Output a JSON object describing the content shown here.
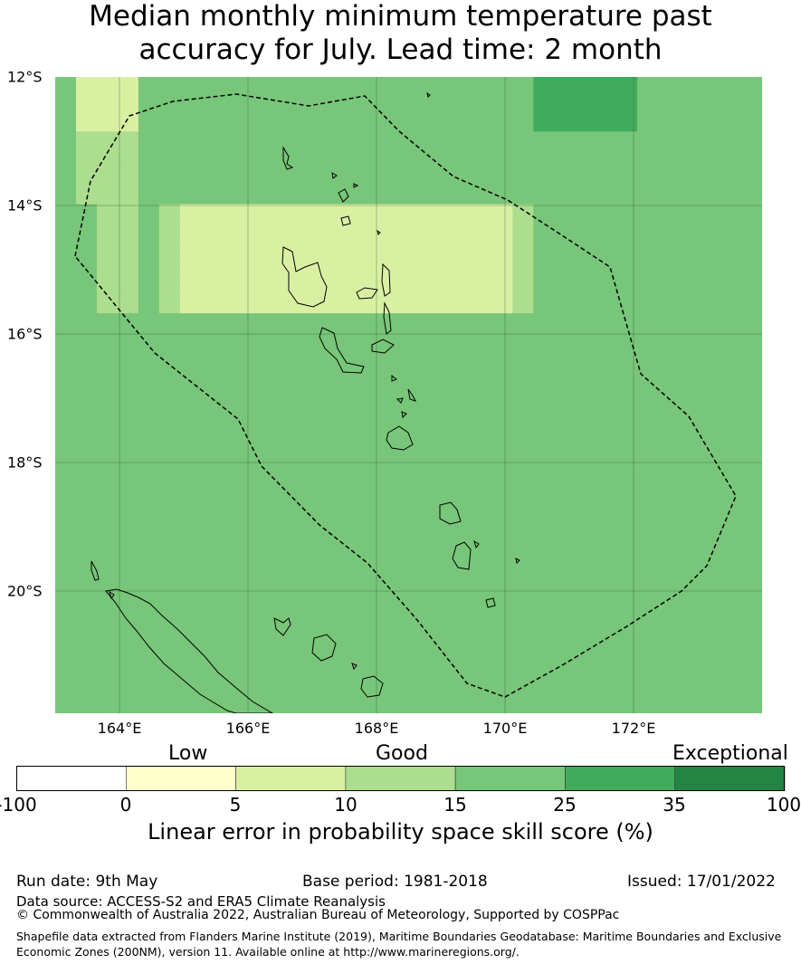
{
  "title_line1": "Median monthly minimum temperature past",
  "title_line2": "accuracy for July. Lead time: 2 month",
  "map": {
    "lat_labels": [
      "12°S",
      "14°S",
      "16°S",
      "18°S",
      "20°S"
    ],
    "lon_labels": [
      "164°E",
      "166°E",
      "168°E",
      "170°E",
      "172°E"
    ],
    "lon_range_deg_e": [
      163.0,
      174.0
    ],
    "lat_range_deg_s": [
      12.0,
      21.9
    ],
    "colors": [
      "#ffffff",
      "#ffffcc",
      "#d9f0a3",
      "#addd8e",
      "#78c679",
      "#41ab5d",
      "#238443"
    ],
    "grid_categories": [
      "4222444444444444444444455555444444",
      "4222444444444444444444455555444444",
      "4222444444444444444444455555444444",
      "4333444444444444444444444444444444",
      "4333444444444444444444444444444444",
      "4333444444444444444444444444444444",
      "4333444444444444444444444444444444",
      "4433432222222222222222344444444444",
      "4433432222222222222222344444444444",
      "4433432222222222222222344444444444",
      "4433432222222222222222344444444444",
      "4433432222222222222222344444444444",
      "4433432222222222222222344444444444",
      "4444444444444444444444444444444444",
      "4444444444444444444444444444444444",
      "4444444444444444444444444444444444",
      "4444444444444444444444444444444444",
      "4444444444444444444444444444444444",
      "4444444444444444444444444444444444",
      "4444444444444444444444444444444444",
      "4444444444444444444444444444444444",
      "4444444444444444444444444444444444",
      "4444444444444444444444444444444444",
      "4444444444444444444444444444444444",
      "4444444444444444444444444444444444",
      "4444444444444444444444444444444444",
      "4444444444444444444444444444444444",
      "4444444444444444444444444444444444",
      "4444444444444444444444444444444444",
      "4444444444444444444444444444444444",
      "4444444444444444444444444444444444",
      "4444444444444444444444444444444444",
      "4444444444444444444444444444444444",
      "4444444444444444444444444444444444",
      "4444444444444444444444444444444444"
    ]
  },
  "legend": {
    "categories": [
      "Low",
      "Good",
      "Exceptional"
    ],
    "colors": [
      "#ffffff",
      "#ffffcc",
      "#d9f0a3",
      "#addd8e",
      "#78c679",
      "#41ab5d",
      "#238443"
    ],
    "ticks": [
      "-100",
      "0",
      "5",
      "10",
      "15",
      "25",
      "35",
      "100"
    ],
    "title": "Linear error in probability space skill score (%)"
  },
  "meta": {
    "run_date": "Run date: 9th May",
    "base_period": "Base period: 1981-2018",
    "issued": "Issued: 17/01/2022",
    "data_source": "Data source: ACCESS-S2 and ERA5 Climate Reanalysis",
    "copyright": "© Commonwealth of Australia 2022, Australian Bureau of Meteorology, Supported by COSPPac",
    "shapefile": "Shapefile data extracted from Flanders Marine Institute (2019), Maritime Boundaries Geodatabase: Maritime Boundaries and Exclusive Economic Zones (200NM), version 11. Available online at http://www.marineregions.org/."
  }
}
